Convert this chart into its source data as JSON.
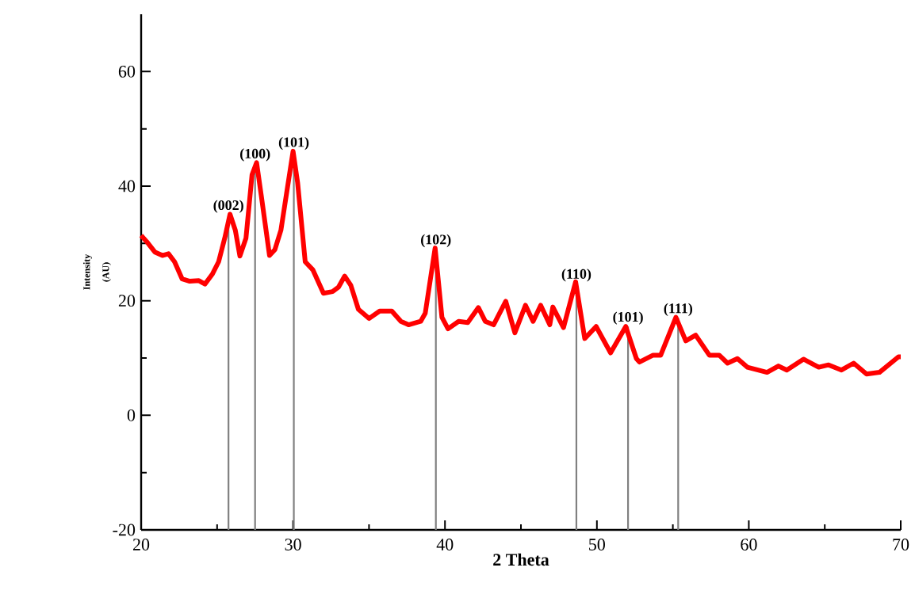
{
  "chart_data": {
    "type": "line",
    "xlabel": "2 Theta",
    "ylabel": "Intensity (AU)",
    "xlim": [
      20,
      70
    ],
    "ylim": [
      -20,
      70
    ],
    "xticks": [
      20,
      30,
      40,
      50,
      60,
      70
    ],
    "yticks": [
      -20,
      0,
      20,
      40,
      60
    ],
    "series": [
      {
        "color": "#ff0000",
        "x": [
          20,
          20.37,
          20.9,
          21.4,
          21.8,
          22.2,
          22.7,
          23.2,
          23.8,
          24.2,
          24.7,
          25.1,
          25.5,
          25.85,
          26.2,
          26.5,
          26.9,
          27.3,
          27.6,
          27.9,
          28.45,
          28.8,
          29.2,
          29.6,
          30.0,
          30.3,
          30.8,
          31.3,
          32,
          32.6,
          33,
          33.4,
          33.8,
          34.3,
          35,
          35.7,
          36.5,
          37.1,
          37.6,
          38.4,
          38.7,
          39.35,
          39.8,
          40.2,
          40.9,
          41.5,
          42.2,
          42.65,
          43.2,
          44,
          44.6,
          45.3,
          45.8,
          46.3,
          46.9,
          47.1,
          47.8,
          48.6,
          49.2,
          49.95,
          50.9,
          51.9,
          52.6,
          52.8,
          53.7,
          54.2,
          55.2,
          55.85,
          56.5,
          57.4,
          58.05,
          58.6,
          59.25,
          59.9,
          61.2,
          61.95,
          62.5,
          63.6,
          64.6,
          65.25,
          66.1,
          66.9,
          67.75,
          68.6,
          69.85,
          70
        ],
        "values": [
          31.4,
          30.3,
          28.5,
          27.9,
          28.2,
          26.8,
          23.8,
          23.4,
          23.5,
          22.9,
          24.7,
          26.8,
          30.9,
          35.1,
          32.3,
          27.8,
          30.9,
          42,
          44.1,
          38.5,
          27.9,
          28.9,
          32.3,
          39.2,
          46.1,
          40.6,
          26.8,
          25.4,
          21.3,
          21.6,
          22.4,
          24.3,
          22.7,
          18.5,
          16.9,
          18.2,
          18.2,
          16.4,
          15.8,
          16.4,
          17.8,
          29.2,
          17.1,
          15.1,
          16.4,
          16.2,
          18.8,
          16.4,
          15.8,
          19.9,
          14.4,
          19.2,
          16.4,
          19.2,
          15.8,
          18.9,
          15.3,
          23.3,
          13.4,
          15.5,
          10.9,
          15.5,
          9.9,
          9.3,
          10.5,
          10.5,
          17.1,
          13,
          14,
          10.5,
          10.5,
          9.1,
          9.9,
          8.4,
          7.5,
          8.6,
          7.9,
          9.8,
          8.4,
          8.8,
          7.9,
          9.1,
          7.2,
          7.5,
          10.2,
          10.2
        ]
      }
    ],
    "annotations": [
      {
        "text": "(002)",
        "x": 25.75,
        "y": 35
      },
      {
        "text": "(100)",
        "x": 27.5,
        "y": 44
      },
      {
        "text": "(101)",
        "x": 30.05,
        "y": 46
      },
      {
        "text": "(102)",
        "x": 39.4,
        "y": 29
      },
      {
        "text": "(110)",
        "x": 48.65,
        "y": 23
      },
      {
        "text": "(101)",
        "x": 52.05,
        "y": 15.5
      },
      {
        "text": "(111)",
        "x": 55.35,
        "y": 17
      }
    ],
    "marker": "none",
    "line_style": "solid"
  }
}
